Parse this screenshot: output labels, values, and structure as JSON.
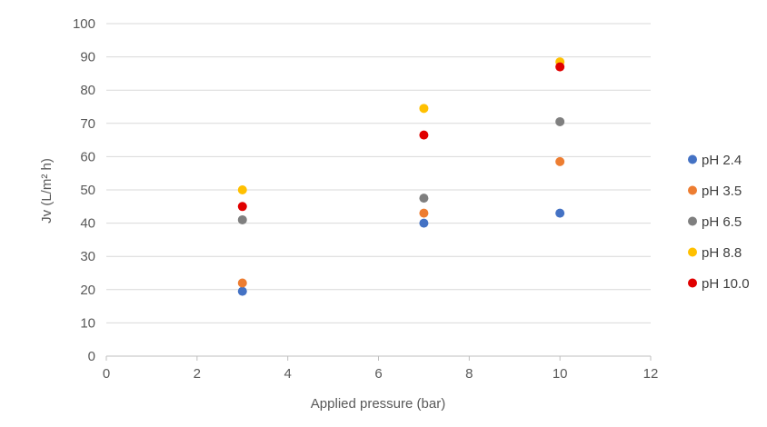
{
  "chart_data": {
    "type": "scatter",
    "title": "",
    "xlabel": "Applied pressure (bar)",
    "ylabel": "Jv (L/m² h)",
    "xlim": [
      0,
      12
    ],
    "ylim": [
      0,
      100
    ],
    "x_ticks": [
      "0",
      "2",
      "4",
      "6",
      "8",
      "10",
      "12"
    ],
    "y_ticks": [
      "0",
      "10",
      "20",
      "30",
      "40",
      "50",
      "60",
      "70",
      "80",
      "90",
      "100"
    ],
    "grid": "horizontal",
    "legend_position": "right",
    "x": [
      3,
      7,
      10
    ],
    "series": [
      {
        "name": "pH 2.4",
        "color": "#4472C4",
        "values": [
          19.5,
          40,
          43
        ]
      },
      {
        "name": "pH 3.5",
        "color": "#ED7D31",
        "values": [
          22,
          43,
          58.5
        ]
      },
      {
        "name": "pH 6.5",
        "color": "#7F7F7F",
        "values": [
          41,
          47.5,
          70.5
        ]
      },
      {
        "name": "pH 8.8",
        "color": "#FFC000",
        "values": [
          50,
          74.5,
          88.5
        ]
      },
      {
        "name": "pH 10.0",
        "color": "#E00000",
        "values": [
          45,
          66.5,
          87
        ]
      }
    ]
  }
}
